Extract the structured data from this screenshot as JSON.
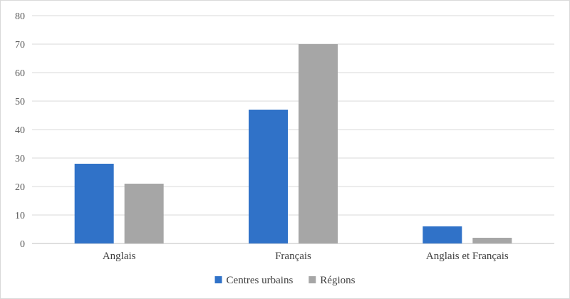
{
  "chart_data": {
    "type": "bar",
    "categories": [
      "Anglais",
      "Français",
      "Anglais et Français"
    ],
    "series": [
      {
        "name": "Centres urbains",
        "color": "#3072C8",
        "values": [
          28,
          47,
          6
        ]
      },
      {
        "name": "Régions",
        "color": "#A6A6A6",
        "values": [
          21,
          70,
          2
        ]
      }
    ],
    "ylim": [
      0,
      80
    ],
    "yticks": [
      0,
      10,
      20,
      30,
      40,
      50,
      60,
      70,
      80
    ],
    "grid": true,
    "legend_position": "bottom",
    "title": "",
    "xlabel": "",
    "ylabel": ""
  }
}
